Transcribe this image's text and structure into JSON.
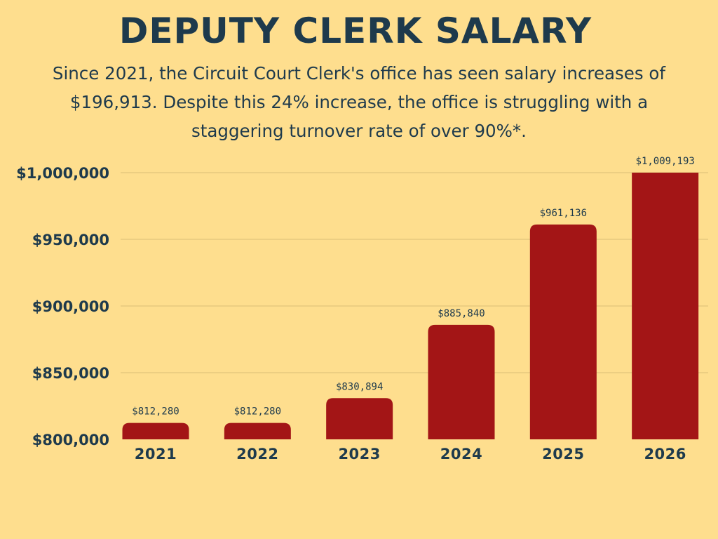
{
  "colors": {
    "background": "#FEDE8E",
    "text": "#1E3A4C",
    "bar": "#A31516",
    "grid": "#D9BE76"
  },
  "header": {
    "title": "DEPUTY CLERK SALARY",
    "subtitle": "Since 2021, the Circuit Court Clerk's office has seen salary increases of $196,913. Despite this 24% increase, the office is struggling with a staggering turnover rate of over 90%*."
  },
  "chart_data": {
    "type": "bar",
    "title": "DEPUTY CLERK SALARY",
    "xlabel": "",
    "ylabel": "",
    "categories": [
      "2021",
      "2022",
      "2023",
      "2024",
      "2025",
      "2026"
    ],
    "values": [
      812280,
      812280,
      830894,
      885840,
      961136,
      1009193
    ],
    "data_labels": [
      "$812,280",
      "$812,280",
      "$830,894",
      "$885,840",
      "$961,136",
      "$1,009,193"
    ],
    "ylim": [
      800000,
      1000000
    ],
    "yticks": [
      800000,
      850000,
      900000,
      950000,
      1000000
    ],
    "ytick_labels": [
      "$800,000",
      "$850,000",
      "$900,000",
      "$950,000",
      "$1,000,000"
    ],
    "grid": true,
    "legend": "none"
  }
}
